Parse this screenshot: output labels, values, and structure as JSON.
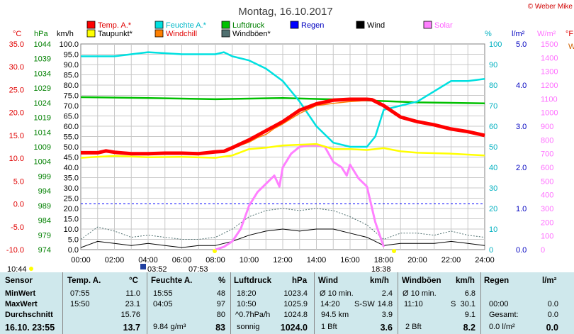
{
  "header": {
    "title": "Montag, 16.10.2017",
    "copyright": "© Weber Mike"
  },
  "legend": [
    {
      "label": "Temp. A.*",
      "color": "#ff0000"
    },
    {
      "label": "Feuchte A.*",
      "color": "#00e0e0"
    },
    {
      "label": "Luftdruck",
      "color": "#00c000"
    },
    {
      "label": "Regen",
      "color": "#0000ff"
    },
    {
      "label": "Wind",
      "color": "#000000"
    },
    {
      "label": "Solar",
      "color": "#ff80ff"
    },
    {
      "label": "Taupunkt*",
      "color": "#ffff00"
    },
    {
      "label": "Windchill",
      "color": "#ff8000"
    },
    {
      "label": "Windböen*",
      "color": "#507070"
    }
  ],
  "units": {
    "temp": "°C",
    "hpa": "hPa",
    "kmh": "km/h",
    "pct": "%",
    "lm2": "l/m²",
    "wm2": "W/m²",
    "far": "°F",
    "we": "W"
  },
  "axes": {
    "temp_ticks": [
      "35.0",
      "30.0",
      "25.0",
      "20.0",
      "15.0",
      "10.0",
      "5.0",
      "0.0",
      "-5.0",
      "-10.0"
    ],
    "hpa_ticks": [
      "1044",
      "1039",
      "1034",
      "1029",
      "1024",
      "1019",
      "1014",
      "1009",
      "1004",
      "999",
      "994",
      "989",
      "984",
      "979",
      "974"
    ],
    "kmh_ticks": [
      "100.0",
      "95.0",
      "90.0",
      "85.0",
      "80.0",
      "75.0",
      "70.0",
      "65.0",
      "60.0",
      "55.0",
      "50.0",
      "45.0",
      "40.0",
      "35.0",
      "30.0",
      "25.0",
      "20.0",
      "15.0",
      "10.0",
      "5.0",
      "0.0"
    ],
    "pct_ticks": [
      "100",
      "90",
      "80",
      "70",
      "60",
      "50",
      "40",
      "30",
      "20",
      "10",
      "0"
    ],
    "rain_ticks": [
      "5.0",
      "4.0",
      "3.0",
      "2.0",
      "1.0",
      "0.0"
    ],
    "solar_ticks": [
      "1500",
      "1400",
      "1300",
      "1200",
      "1100",
      "1000",
      "900",
      "800",
      "700",
      "600",
      "500",
      "400",
      "300",
      "200",
      "100",
      "0"
    ],
    "time_ticks": [
      "00:00",
      "02:00",
      "04:00",
      "06:00",
      "08:00",
      "10:00",
      "12:00",
      "14:00",
      "16:00",
      "18:00",
      "20:00",
      "22:00",
      "24:00"
    ]
  },
  "markers": {
    "moonrise": "03:52",
    "sunrise": "07:53",
    "sunset": "18:38",
    "moonset": "10:44"
  },
  "chart_data": {
    "type": "line",
    "x_range_hours": [
      0,
      24
    ],
    "temp_range": [
      -10,
      35
    ],
    "pct_range": [
      0,
      100
    ],
    "kmh_range": [
      0,
      100
    ],
    "solar_range": [
      0,
      1500
    ],
    "series": [
      {
        "name": "Temp. A.*",
        "axis": "temp",
        "color": "#ff0000",
        "x": [
          0,
          1,
          1.5,
          2,
          3,
          4,
          5,
          6,
          7,
          8,
          8.5,
          9,
          10,
          11,
          12,
          13,
          14,
          15,
          16,
          17,
          17.3,
          18,
          19,
          20,
          21,
          22,
          23,
          24
        ],
        "y": [
          11.2,
          11.2,
          11.6,
          11.3,
          11.0,
          11.0,
          11.1,
          11.1,
          11.0,
          11.4,
          11.5,
          12.3,
          14.0,
          16.0,
          18.0,
          20.5,
          21.9,
          22.7,
          22.9,
          22.9,
          22.8,
          21.5,
          19.0,
          18.0,
          17.3,
          16.4,
          15.8,
          15.0
        ]
      },
      {
        "name": "Taupunkt*",
        "axis": "temp",
        "color": "#ffff00",
        "x": [
          0,
          2,
          4,
          6,
          8,
          9,
          10,
          11,
          12,
          14,
          15,
          16,
          17,
          18,
          19,
          20,
          22,
          24
        ],
        "y": [
          10.1,
          10.5,
          10.2,
          10.3,
          10.1,
          10.6,
          12.0,
          12.3,
          12.8,
          13.1,
          12.0,
          12.0,
          11.8,
          12.2,
          11.5,
          11.2,
          11.0,
          10.6
        ]
      },
      {
        "name": "Windchill",
        "axis": "temp",
        "color": "#ff8000",
        "x": [
          9,
          10,
          10.5,
          11,
          11.5,
          12,
          13,
          14,
          15,
          16,
          17
        ],
        "y": [
          12.2,
          13.5,
          14.5,
          15.2,
          16.5,
          17.5,
          19.8,
          21.5,
          22.0,
          22.4,
          22.6
        ]
      },
      {
        "name": "Feuchte A.*",
        "axis": "pct",
        "color": "#00e0e0",
        "x": [
          0,
          2,
          4,
          6,
          8,
          8.5,
          9,
          10,
          11,
          12,
          13,
          14,
          15,
          16,
          17,
          17.5,
          18,
          19,
          20,
          21,
          22,
          23,
          24
        ],
        "y": [
          94,
          94,
          96,
          95,
          95,
          96,
          94,
          92,
          88,
          82,
          72,
          60,
          52,
          50,
          50,
          55,
          68,
          70,
          72,
          77,
          82,
          82,
          83
        ]
      },
      {
        "name": "Luftdruck",
        "axis": "hpa",
        "color": "#00c000",
        "x": [
          0,
          4,
          8,
          12,
          16,
          20,
          24
        ],
        "y": [
          1025.9,
          1025.6,
          1025.2,
          1025.6,
          1025.0,
          1024.1,
          1023.8
        ]
      },
      {
        "name": "Solar",
        "axis": "solar",
        "color": "#ff80ff",
        "x": [
          8,
          8.5,
          9,
          9.5,
          10,
          10.5,
          11,
          11.5,
          11.8,
          12,
          12.5,
          13,
          13.5,
          14,
          14.5,
          15,
          15.5,
          15.8,
          16,
          16.5,
          17,
          17.5,
          18
        ],
        "y": [
          0,
          20,
          60,
          150,
          320,
          420,
          480,
          540,
          460,
          600,
          700,
          750,
          760,
          760,
          750,
          640,
          600,
          540,
          620,
          520,
          460,
          200,
          20
        ]
      },
      {
        "name": "Windböen*",
        "axis": "kmh",
        "color": "#507070",
        "x": [
          0,
          1,
          2,
          3,
          4,
          5,
          6,
          7,
          8,
          9,
          10,
          11,
          12,
          13,
          14,
          15,
          16,
          17,
          18,
          19,
          20,
          21,
          22,
          23,
          24
        ],
        "y": [
          5,
          11,
          9,
          6,
          7,
          6,
          5,
          5,
          6,
          10,
          16,
          19,
          20,
          19,
          20,
          19,
          16,
          12,
          5,
          8,
          8,
          7,
          9,
          7,
          6
        ]
      },
      {
        "name": "Wind",
        "axis": "kmh",
        "color": "#000000",
        "x": [
          0,
          1,
          2,
          3,
          4,
          5,
          6,
          7,
          8,
          9,
          10,
          11,
          12,
          13,
          14,
          15,
          16,
          17,
          18,
          19,
          20,
          21,
          22,
          23,
          24
        ],
        "y": [
          1,
          4,
          3,
          2,
          3,
          2,
          1,
          2,
          2,
          4,
          7,
          9,
          10,
          9,
          10,
          10,
          8,
          6,
          2,
          3,
          3,
          3,
          4,
          3,
          2
        ]
      }
    ]
  },
  "table": {
    "headers": {
      "sensor": "Sensor",
      "temp": "Temp. A.",
      "temp_unit": "°C",
      "hum": "Feuchte A.",
      "hum_unit": "%",
      "press": "Luftdruck",
      "press_unit": "hPa",
      "wind": "Wind",
      "wind_unit": "km/h",
      "gust": "Windböen",
      "gust_unit": "km/h",
      "rain": "Regen",
      "rain_unit": "l/m²"
    },
    "min": {
      "label": "MinWert",
      "t_time": "07:55",
      "t_val": "11.0",
      "h_time": "15:55",
      "h_val": "48",
      "p_time": "18:20",
      "p_val": "1023.4",
      "w_label": "Ø 10 min.",
      "w_val": "2.4",
      "g_label": "Ø 10 min.",
      "g_val": "6.8"
    },
    "max": {
      "label": "MaxWert",
      "t_time": "15:50",
      "t_val": "23.1",
      "h_time": "04:05",
      "h_val": "97",
      "p_time": "10:50",
      "p_val": "1025.9",
      "w_time": "14:20",
      "w_dir": "S-SW",
      "w_val": "14.8",
      "g_time": "11:10",
      "g_dir": "S",
      "g_val": "30.1",
      "r_time": "00:00",
      "r_val": "0.0"
    },
    "avg": {
      "label": "Durchschnitt",
      "t_val": "15.76",
      "h_val": "80",
      "p_trend": "^0.7hPa/h",
      "p_val": "1024.8",
      "w_km": "94.5 km",
      "w_val": "3.9",
      "g_val": "9.1",
      "r_label": "Gesamt:",
      "r_val": "0.0"
    },
    "now": {
      "label": "16.10. 23:55",
      "t_val": "13.7",
      "h_abs": "9.84 g/m³",
      "h_val": "83",
      "p_text": "sonnig",
      "p_val": "1024.0",
      "w_bft": "1 Bft",
      "w_val": "3.6",
      "g_bft": "2 Bft",
      "g_val": "8.2",
      "r_text": "0.0 l/m²",
      "r_val": "0.0"
    }
  }
}
